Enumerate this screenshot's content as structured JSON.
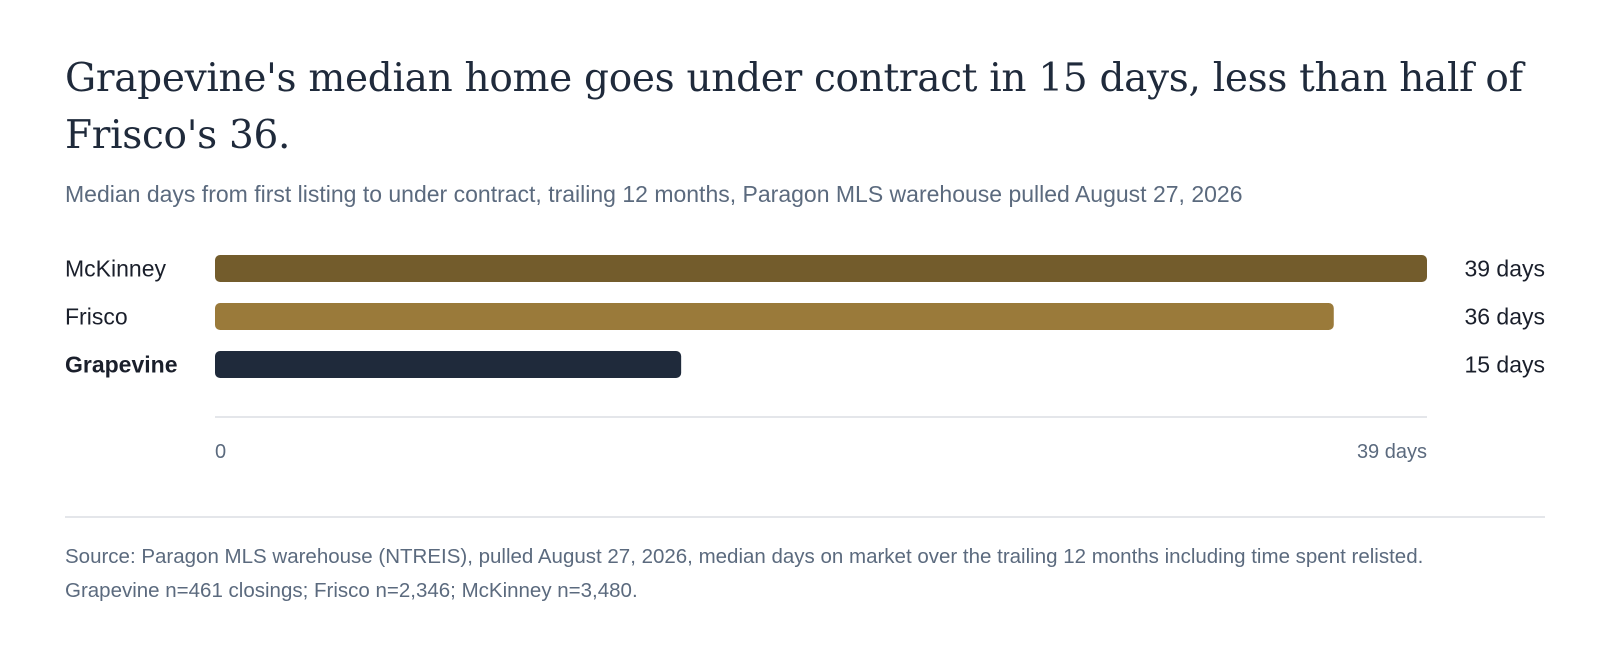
{
  "title": "Grapevine's median home goes under contract in 15 days, less than half of Frisco's 36.",
  "subtitle": "Median days from first listing to under contract, trailing 12 months, Paragon MLS warehouse pulled August 27, 2026",
  "source": {
    "line1": "Source: Paragon MLS warehouse (NTREIS), pulled August 27, 2026, median days on market over the trailing 12 months including time spent relisted.",
    "line2": "Grapevine n=461 closings; Frisco n=2,346; McKinney n=3,480."
  },
  "chart_data": {
    "type": "bar",
    "orientation": "horizontal",
    "categories": [
      "McKinney",
      "Frisco",
      "Grapevine"
    ],
    "values": [
      39,
      36,
      15
    ],
    "value_labels": [
      "39 days",
      "36 days",
      "15 days"
    ],
    "highlighted_category": "Grapevine",
    "colors": [
      "#735c2c",
      "#9a7a3a",
      "#1f2a3b"
    ],
    "xlim": [
      0,
      39
    ],
    "x_tick_labels": [
      "0",
      "39 days"
    ],
    "grid": false,
    "legend": "none"
  }
}
